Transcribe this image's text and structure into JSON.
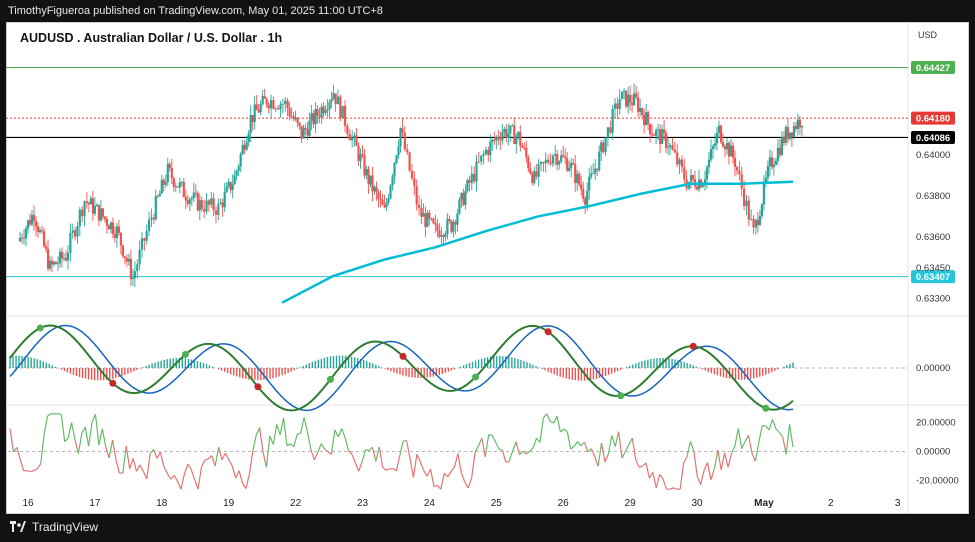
{
  "header": {
    "publish_line": "TimothyFigueroa published on TradingView.com, May 01, 2025 11:00 UTC+8",
    "symbol_title": "AUDUSD . Australian Dollar / U.S. Dollar . 1h",
    "currency": "USD"
  },
  "footer": {
    "brand": "TradingView"
  },
  "colors": {
    "up": "#26a69a",
    "down": "#ef5350",
    "ma": "#00bcd4",
    "resistance": "#4caf50",
    "support": "#26c6da",
    "last_price": "#e53935",
    "current_line": "#000000"
  },
  "chart_data": [
    {
      "type": "candlestick",
      "title": "AUDUSD . Australian Dollar / U.S. Dollar . 1h",
      "x_tick_labels": [
        "16",
        "17",
        "18",
        "19",
        "22",
        "23",
        "24",
        "25",
        "26",
        "29",
        "30",
        "May",
        "2",
        "3"
      ],
      "y_tick_labels": [
        "0.64000",
        "0.63800",
        "0.63600",
        "0.63450",
        "0.63300"
      ],
      "y_ticks": [
        0.64,
        0.638,
        0.636,
        0.6345,
        0.633
      ],
      "ylim": [
        0.6322,
        0.6461
      ],
      "horizontal_levels": [
        {
          "label": "0.64427",
          "value": 0.64427,
          "color": "#4caf50"
        },
        {
          "label": "0.64180",
          "value": 0.6418,
          "color": "#e53935"
        },
        {
          "label": "0.64086",
          "value": 0.64086,
          "color": "#000000"
        },
        {
          "label": "0.63407",
          "value": 0.63407,
          "color": "#26c6da"
        }
      ],
      "closes_by_day": [
        {
          "day": "16",
          "approx_close": [
            0.6358,
            0.6372,
            0.6345,
            0.6351
          ]
        },
        {
          "day": "17",
          "approx_close": [
            0.6378,
            0.6371,
            0.6363,
            0.634
          ]
        },
        {
          "day": "18",
          "approx_close": [
            0.637,
            0.6392,
            0.6382,
            0.6376
          ]
        },
        {
          "day": "19",
          "approx_close": [
            0.6374,
            0.6389,
            0.6418,
            0.6427
          ]
        },
        {
          "day": "22",
          "approx_close": [
            0.6425,
            0.641,
            0.642,
            0.6431
          ]
        },
        {
          "day": "23",
          "approx_close": [
            0.6408,
            0.6388,
            0.6372,
            0.6413
          ]
        },
        {
          "day": "24",
          "approx_close": [
            0.6372,
            0.6363,
            0.6366,
            0.6384
          ]
        },
        {
          "day": "25",
          "approx_close": [
            0.6402,
            0.6412,
            0.6409,
            0.6388
          ]
        },
        {
          "day": "26",
          "approx_close": [
            0.6401,
            0.6396,
            0.638,
            0.6402
          ]
        },
        {
          "day": "29",
          "approx_close": [
            0.6428,
            0.6426,
            0.6412,
            0.6406
          ]
        },
        {
          "day": "30",
          "approx_close": [
            0.6387,
            0.6388,
            0.6412,
            0.6397
          ]
        },
        {
          "day": "May",
          "approx_close": [
            0.6362,
            0.6395,
            0.641,
            0.6418
          ]
        }
      ],
      "moving_average": [
        0.6328,
        0.6341,
        0.6349,
        0.6355,
        0.6363,
        0.637,
        0.6375,
        0.6381,
        0.6386,
        0.6386,
        0.6387
      ]
    },
    {
      "type": "line",
      "subtype": "macd-histogram",
      "y_tick_labels": [
        "0.00000"
      ],
      "zero_label": "0.00000",
      "series": [
        {
          "color": "#2e7d32"
        },
        {
          "color": "#1565c0"
        }
      ]
    },
    {
      "type": "line",
      "subtype": "oscillator",
      "y_tick_labels": [
        "20.00000",
        "0.00000",
        "-20.00000"
      ],
      "ylim": [
        -30,
        30
      ]
    }
  ]
}
